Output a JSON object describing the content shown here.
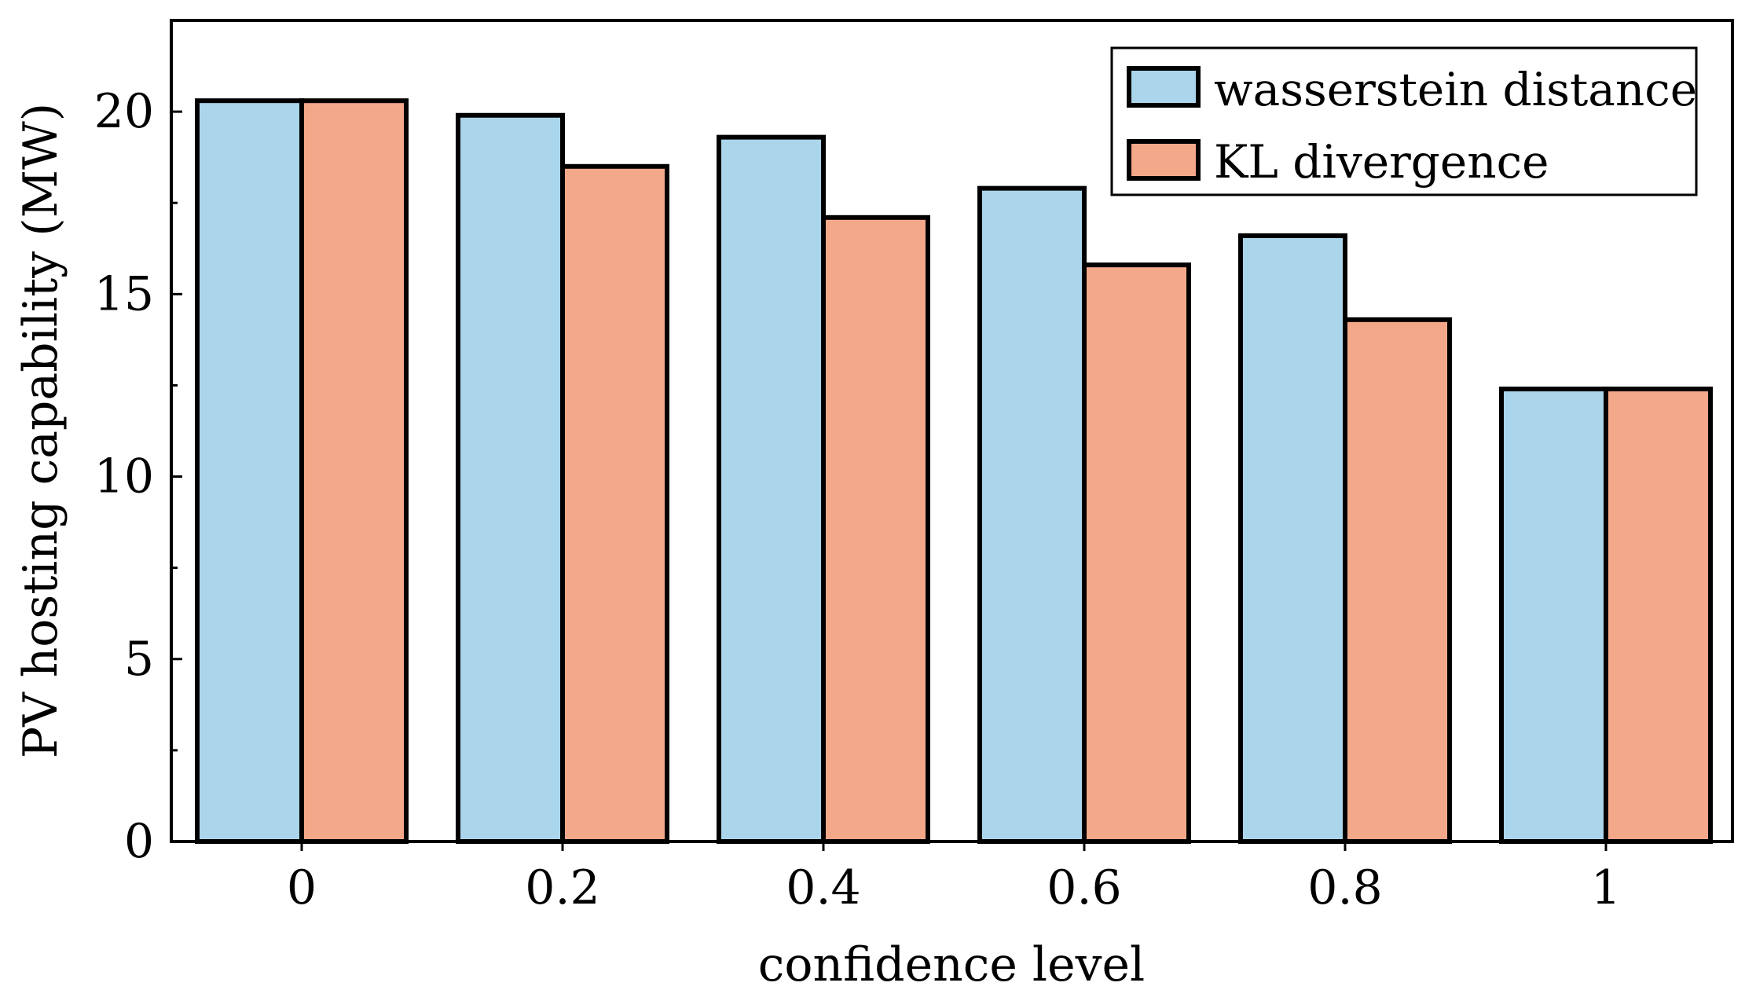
{
  "chart_data": {
    "type": "bar",
    "title": "",
    "xlabel": "confidence level",
    "ylabel": "PV hosting capability (MW)",
    "categories": [
      "0",
      "0.2",
      "0.4",
      "0.6",
      "0.8",
      "1"
    ],
    "ylim": [
      0,
      22.5
    ],
    "yticks": [
      "0",
      "5",
      "10",
      "15",
      "20"
    ],
    "legend_position": "top-right",
    "series": [
      {
        "name": "wasserstein distance",
        "color": "#ABD5EA",
        "values": [
          20.3,
          19.9,
          19.3,
          17.9,
          16.6,
          12.4
        ]
      },
      {
        "name": "KL divergence",
        "color": "#F4A88A",
        "values": [
          20.3,
          18.5,
          17.1,
          15.8,
          14.3,
          12.4
        ]
      }
    ]
  }
}
